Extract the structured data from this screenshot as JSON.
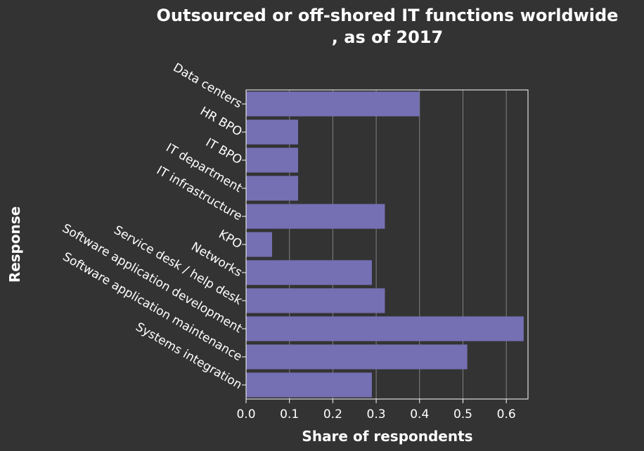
{
  "chart_data": {
    "type": "bar",
    "orientation": "horizontal",
    "title": "Outsourced or off-shored IT functions worldwide , as of 2017",
    "title_lines": [
      "Outsourced or off-shored IT functions worldwide",
      ", as of 2017"
    ],
    "xlabel": "Share of respondents",
    "ylabel": "Response",
    "categories": [
      "Data centers",
      "HR BPO",
      "IT BPO",
      "IT department",
      "IT infrastructure",
      "KPO",
      "Networks",
      "Service desk / help desk",
      "Software application development",
      "Software application maintenance",
      "Systems integration"
    ],
    "values": [
      0.4,
      0.12,
      0.12,
      0.12,
      0.32,
      0.06,
      0.29,
      0.32,
      0.64,
      0.51,
      0.29
    ],
    "xlim": [
      0,
      0.65
    ],
    "xticks": [
      0.0,
      0.1,
      0.2,
      0.3,
      0.4,
      0.5,
      0.6
    ],
    "xtick_labels": [
      "0.0",
      "0.1",
      "0.2",
      "0.3",
      "0.4",
      "0.5",
      "0.6"
    ],
    "grid": true,
    "legend": "none",
    "colors": {
      "background": "#333333",
      "bar": "#7570b3",
      "grid": "#808080",
      "text": "#ffffff"
    }
  }
}
